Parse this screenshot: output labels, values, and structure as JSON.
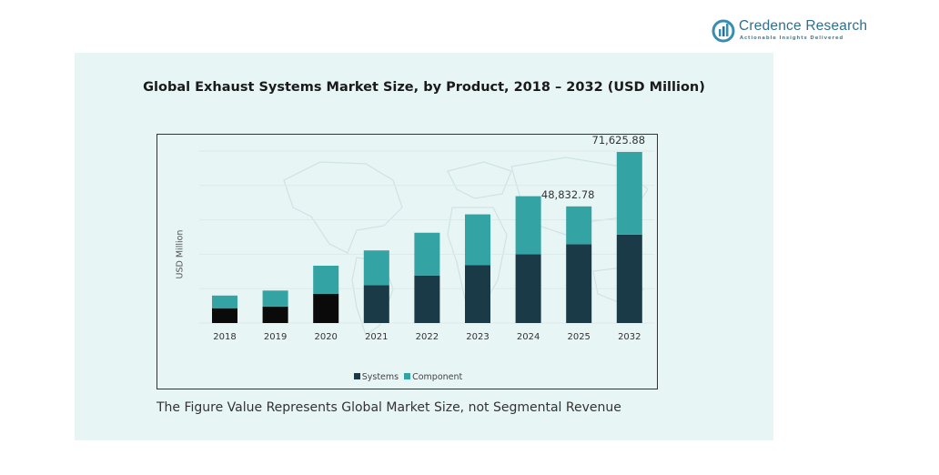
{
  "brand": {
    "name": "Credence Research",
    "tagline": "Actionable Insights Delivered"
  },
  "footnote": "The Figure Value Represents Global Market Size, not Segmental Revenue",
  "colors": {
    "systems": "#1b3a48",
    "component": "#33a3a3",
    "early_systems": "#0a0a0a",
    "panel_bg": "#e7f5f5"
  },
  "chart_data": {
    "type": "bar",
    "stacked": true,
    "title": "Global Exhaust Systems Market Size, by Product, 2018 – 2032 (USD Million)",
    "xlabel": "",
    "ylabel": "USD Million",
    "categories": [
      "2018",
      "2019",
      "2020",
      "2021",
      "2022",
      "2023",
      "2024",
      "2025",
      "2032"
    ],
    "series": [
      {
        "name": "Systems",
        "values": [
          6200,
          6900,
          12200,
          15900,
          19900,
          24300,
          28800,
          33000,
          37000
        ]
      },
      {
        "name": "Component",
        "values": [
          5300,
          6700,
          11800,
          14500,
          17900,
          21200,
          24300,
          15832.78,
          34625.88
        ]
      }
    ],
    "data_labels": {
      "2025": "48,832.78",
      "2032": "71,625.88"
    },
    "ylim": [
      0,
      72000
    ],
    "grid": true,
    "legend_position": "bottom"
  }
}
